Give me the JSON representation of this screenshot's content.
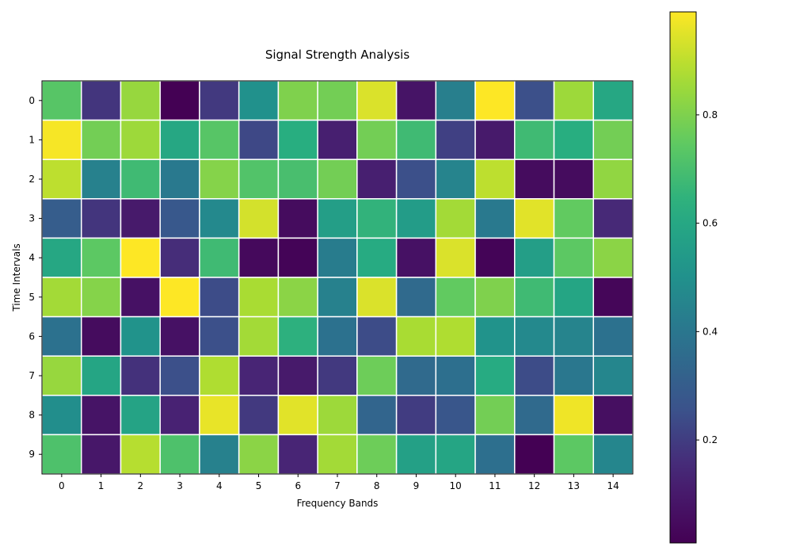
{
  "chart_data": {
    "type": "heatmap",
    "title": "Signal Strength Analysis",
    "xlabel": "Frequency Bands",
    "ylabel": "Time Intervals",
    "x_categories": [
      "0",
      "1",
      "2",
      "3",
      "4",
      "5",
      "6",
      "7",
      "8",
      "9",
      "10",
      "11",
      "12",
      "13",
      "14"
    ],
    "y_categories": [
      "0",
      "1",
      "2",
      "3",
      "4",
      "5",
      "6",
      "7",
      "8",
      "9"
    ],
    "values": [
      [
        0.73,
        0.18,
        0.84,
        0.01,
        0.19,
        0.5,
        0.8,
        0.78,
        0.94,
        0.08,
        0.43,
        0.99,
        0.25,
        0.85,
        0.6
      ],
      [
        0.98,
        0.78,
        0.85,
        0.6,
        0.73,
        0.23,
        0.63,
        0.12,
        0.78,
        0.68,
        0.21,
        0.1,
        0.68,
        0.63,
        0.78
      ],
      [
        0.9,
        0.44,
        0.68,
        0.41,
        0.81,
        0.72,
        0.7,
        0.78,
        0.12,
        0.25,
        0.45,
        0.9,
        0.05,
        0.05,
        0.83
      ],
      [
        0.3,
        0.18,
        0.1,
        0.28,
        0.47,
        0.93,
        0.05,
        0.56,
        0.65,
        0.55,
        0.86,
        0.41,
        0.95,
        0.75,
        0.15
      ],
      [
        0.6,
        0.74,
        0.99,
        0.16,
        0.68,
        0.04,
        0.02,
        0.42,
        0.62,
        0.07,
        0.94,
        0.02,
        0.56,
        0.74,
        0.82
      ],
      [
        0.86,
        0.81,
        0.07,
        0.99,
        0.24,
        0.87,
        0.82,
        0.44,
        0.94,
        0.35,
        0.75,
        0.8,
        0.68,
        0.59,
        0.03
      ],
      [
        0.38,
        0.05,
        0.51,
        0.07,
        0.25,
        0.86,
        0.64,
        0.38,
        0.24,
        0.87,
        0.88,
        0.51,
        0.47,
        0.45,
        0.38
      ],
      [
        0.84,
        0.59,
        0.17,
        0.25,
        0.88,
        0.14,
        0.1,
        0.19,
        0.77,
        0.35,
        0.37,
        0.62,
        0.24,
        0.4,
        0.46
      ],
      [
        0.49,
        0.08,
        0.58,
        0.13,
        0.96,
        0.19,
        0.95,
        0.85,
        0.33,
        0.2,
        0.27,
        0.78,
        0.35,
        0.97,
        0.06
      ],
      [
        0.71,
        0.09,
        0.89,
        0.71,
        0.44,
        0.82,
        0.14,
        0.86,
        0.77,
        0.57,
        0.59,
        0.37,
        0.01,
        0.74,
        0.46
      ]
    ],
    "colormap": "viridis",
    "vmin": 0.01,
    "vmax": 0.99,
    "colorbar": {
      "ticks": [
        0.2,
        0.4,
        0.6,
        0.8
      ],
      "tick_labels": [
        "0.2",
        "0.4",
        "0.6",
        "0.8"
      ]
    },
    "cell_border_color": "#ffffff",
    "grid": false,
    "legend": "colorbar-right"
  }
}
